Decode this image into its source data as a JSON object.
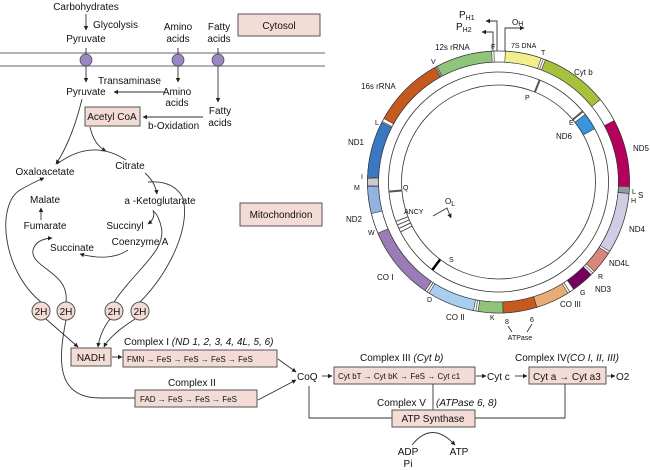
{
  "cytosol": {
    "label": "Cytosol",
    "carbohydrates": "Carbohydrates",
    "glycolysis": "Glycolysis",
    "pyruvate": "Pyruvate",
    "amino_acids": [
      "Amino",
      "acids"
    ],
    "fatty_acids": [
      "Fatty",
      "acids"
    ]
  },
  "mitochondrion": {
    "label": "Mitochondrion",
    "pyruvate": "Pyruvate",
    "transaminase": "Transaminase",
    "amino_acids": [
      "Amino",
      "acids"
    ],
    "fatty_acids": [
      "Fatty",
      "acids"
    ],
    "acetyl_coa": "Acetyl CoA",
    "b_oxidation": "b-Oxidation",
    "tca": {
      "oxaloacetate": "Oxaloacetate",
      "citrate": "Citrate",
      "malate": "Malate",
      "ketoglutarate": "a -Ketoglutarate",
      "fumarate": "Fumarate",
      "succinyl": "Succinyl",
      "coenzyme_a": "Coenzyme A",
      "succinate": "Succinate"
    },
    "reducing_equivalents": [
      "2H",
      "2H",
      "2H",
      "2H"
    ]
  },
  "etc": {
    "nadh": "NADH",
    "complex1": {
      "label": "Complex I",
      "genes": "(ND 1, 2, 3, 4, 4L, 5, 6)",
      "chain": [
        "FMN",
        "FeS",
        "FeS",
        "FeS",
        "FeS"
      ]
    },
    "complex2": {
      "label": "Complex II",
      "chain": [
        "FAD",
        "FeS",
        "FeS",
        "FeS"
      ]
    },
    "coq": "CoQ",
    "complex3": {
      "label": "Complex III",
      "genes": "(Cyt b)",
      "chain": [
        "Cyt bT",
        "Cyt bK",
        "FeS",
        "Cyt c1"
      ]
    },
    "cyt_c": "Cyt c",
    "complex4": {
      "label": "Complex IV",
      "genes": "(CO I, II, III)",
      "chain": [
        "Cyt a",
        "Cyt a3"
      ]
    },
    "o2": "O2",
    "complex5": {
      "label": "Complex V",
      "genes": "(ATPase 6, 8)",
      "enzyme": "ATP Synthase"
    },
    "adp": "ADP",
    "pi": "Pi",
    "atp": "ATP"
  },
  "mtdna": {
    "genes": [
      {
        "name": "12s rRNA",
        "color": "#8fc47a"
      },
      {
        "name": "7S DNA",
        "color": "#f3ee8c"
      },
      {
        "name": "Cyt b",
        "color": "#a6c23c"
      },
      {
        "name": "ND5",
        "color": "#b5005c"
      },
      {
        "name": "ND4",
        "color": "#d0cce6"
      },
      {
        "name": "ND4L",
        "color": "#d9877e"
      },
      {
        "name": "ND3",
        "color": "#76005e"
      },
      {
        "name": "CO III",
        "color": "#e8ad76"
      },
      {
        "name": "6",
        "color": "#c65a1e"
      },
      {
        "name": "8",
        "color": "#8fc47a"
      },
      {
        "name": "CO II",
        "color": "#a8cef0"
      },
      {
        "name": "CO I",
        "color": "#9b7cb8"
      },
      {
        "name": "ND2",
        "color": "#94b2e0"
      },
      {
        "name": "ND1",
        "color": "#3b78c4"
      },
      {
        "name": "16s rRNA",
        "color": "#c65a1e"
      }
    ],
    "nd6": {
      "name": "ND6",
      "color": "#3a94dc"
    },
    "atpase_label": "ATPase",
    "promoters": {
      "ph1": "P",
      "ph1_sub": "H1",
      "ph2": "P",
      "ph2_sub": "H2",
      "oh": "O",
      "oh_sub": "H",
      "ol": "O",
      "ol_sub": "L"
    },
    "trna": {
      "F": "F",
      "T": "T",
      "V": "V",
      "L": "L",
      "I": "I",
      "M": "M",
      "W": "W",
      "D": "D",
      "K": "K",
      "G": "G",
      "R": "R",
      "S": "S",
      "LH": "L",
      "HH": "H",
      "Q": "Q",
      "ANCY": "ANCY",
      "S2": "S",
      "P": "P",
      "E": "E"
    }
  }
}
